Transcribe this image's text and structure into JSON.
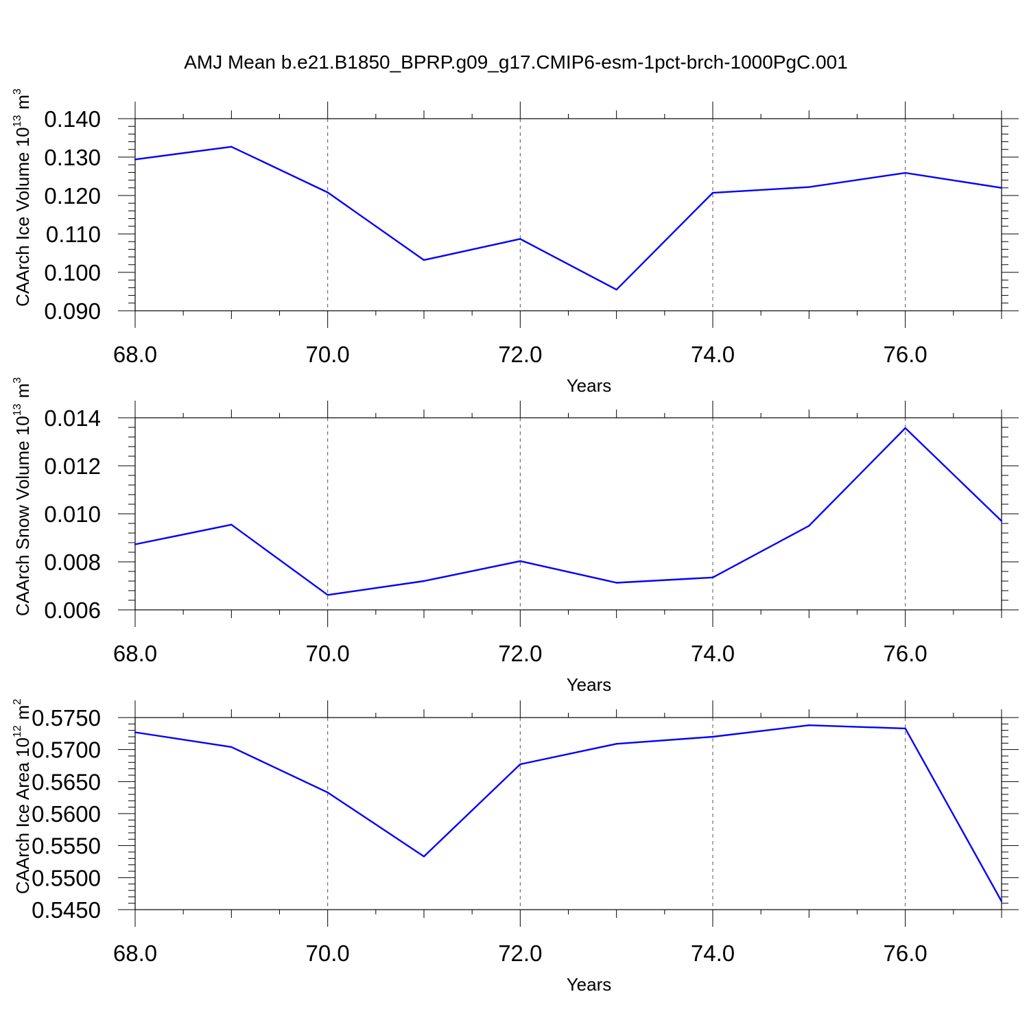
{
  "title": "AMJ Mean b.e21.B1850_BPRP.g09_g17.CMIP6-esm-1pct-brch-1000PgC.001",
  "colors": {
    "series": "#0000ff",
    "axis": "#000000",
    "grid": "#555555"
  },
  "chart_data": [
    {
      "type": "line",
      "ylabel_main": "CAArch Ice Volume 10",
      "ylabel_exp": "13",
      "ylabel_unit": "m",
      "ylabel_unit_exp": "3",
      "xlabel": "Years",
      "xlim": [
        68,
        77
      ],
      "ylim": [
        0.09,
        0.14
      ],
      "yticks": [
        "0.090",
        "0.100",
        "0.110",
        "0.120",
        "0.130",
        "0.140"
      ],
      "xticks": [
        "68.0",
        "70.0",
        "72.0",
        "74.0",
        "76.0"
      ],
      "grid": "vertical dashed",
      "series": [
        {
          "x": [
            68,
            69,
            70,
            71,
            72,
            73,
            74,
            75,
            76,
            77
          ],
          "y": [
            0.1294,
            0.1327,
            0.1208,
            0.1032,
            0.1087,
            0.0955,
            0.1207,
            0.1222,
            0.1259,
            0.122
          ]
        }
      ]
    },
    {
      "type": "line",
      "ylabel_main": "CAArch Snow Volume 10",
      "ylabel_exp": "13",
      "ylabel_unit": "m",
      "ylabel_unit_exp": "3",
      "xlabel": "Years",
      "xlim": [
        68,
        77
      ],
      "ylim": [
        0.006,
        0.014
      ],
      "yticks": [
        "0.006",
        "0.008",
        "0.010",
        "0.012",
        "0.014"
      ],
      "xticks": [
        "68.0",
        "70.0",
        "72.0",
        "74.0",
        "76.0"
      ],
      "grid": "vertical dashed",
      "series": [
        {
          "x": [
            68,
            69,
            70,
            71,
            72,
            73,
            74,
            75,
            76,
            77
          ],
          "y": [
            0.00873,
            0.00955,
            0.00662,
            0.0072,
            0.00803,
            0.00713,
            0.00735,
            0.0095,
            0.01357,
            0.0097
          ]
        }
      ]
    },
    {
      "type": "line",
      "ylabel_main": "CAArch Ice Area 10",
      "ylabel_exp": "12",
      "ylabel_unit": "m",
      "ylabel_unit_exp": "2",
      "xlabel": "Years",
      "xlim": [
        68,
        77
      ],
      "ylim": [
        0.545,
        0.575
      ],
      "yticks": [
        "0.5450",
        "0.5500",
        "0.5550",
        "0.5600",
        "0.5650",
        "0.5700",
        "0.5750"
      ],
      "xticks": [
        "68.0",
        "70.0",
        "72.0",
        "74.0",
        "76.0"
      ],
      "grid": "vertical dashed",
      "series": [
        {
          "x": [
            68,
            69,
            70,
            71,
            72,
            73,
            74,
            75,
            76,
            77
          ],
          "y": [
            0.5727,
            0.5704,
            0.5633,
            0.5533,
            0.5677,
            0.5709,
            0.572,
            0.5738,
            0.5733,
            0.5463
          ]
        }
      ]
    }
  ]
}
